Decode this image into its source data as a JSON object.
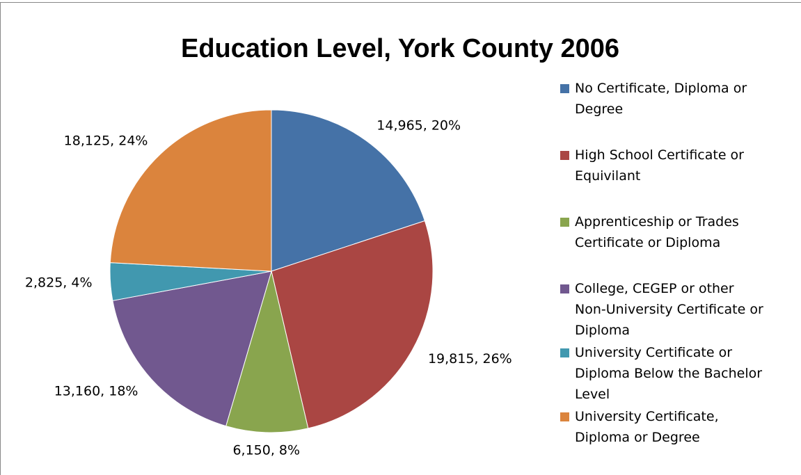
{
  "chart_data": {
    "type": "pie",
    "title": "Education Level, York County 2006",
    "categories": [
      "No Certificate, Diploma or Degree",
      "High School Certificate or Equivilant",
      "Apprenticeship or Trades Certificate or Diploma",
      "College, CEGEP or other Non-University Certificate or Diploma",
      "University Certificate or Diploma Below the Bachelor Level",
      "University Certificate, Diploma or Degree"
    ],
    "values": [
      14965,
      19815,
      6150,
      13160,
      2825,
      18125
    ],
    "value_labels": [
      "14,965, 20%",
      "19,815, 26%",
      "6,150, 8%",
      "13,160, 18%",
      "2,825, 4%",
      "18,125, 24%"
    ],
    "colors": [
      "#4572a7",
      "#aa4643",
      "#89a54e",
      "#71588f",
      "#4198af",
      "#db843d"
    ],
    "legend": "right"
  }
}
